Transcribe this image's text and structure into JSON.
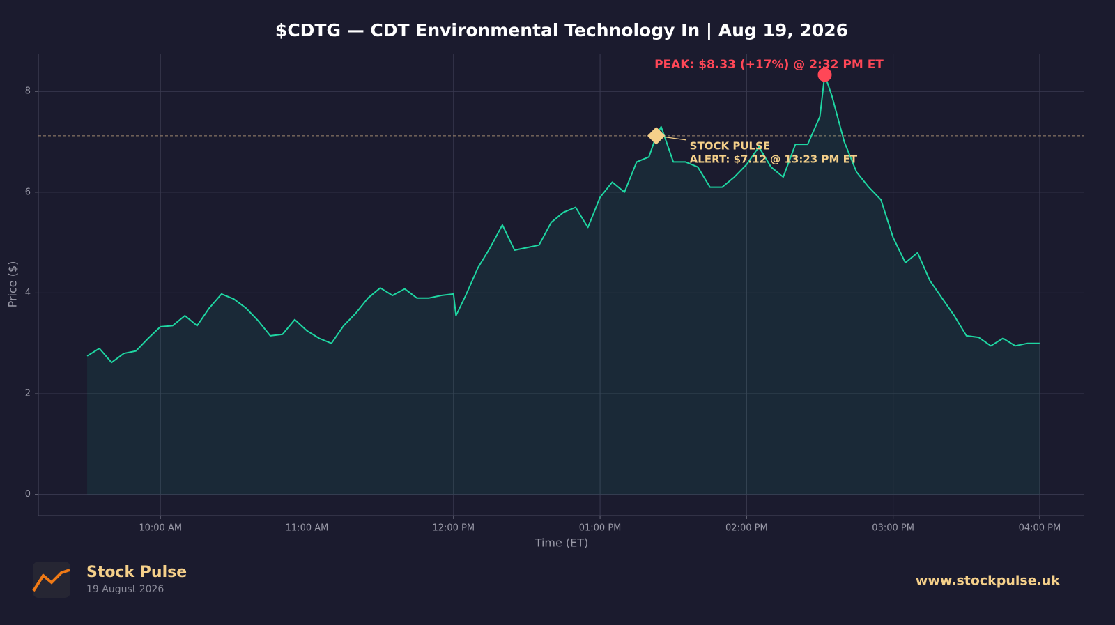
{
  "chart_data": {
    "type": "line",
    "title": "$CDTG — CDT Environmental Technology In  |  Aug 19, 2026",
    "x_label": "Time (ET)",
    "y_label": "Price ($)",
    "x": [
      "09:30",
      "09:35",
      "09:40",
      "09:45",
      "09:50",
      "09:55",
      "10:00",
      "10:05",
      "10:10",
      "10:15",
      "10:20",
      "10:25",
      "10:30",
      "10:35",
      "10:40",
      "10:45",
      "10:50",
      "10:55",
      "11:00",
      "11:05",
      "11:10",
      "11:15",
      "11:20",
      "11:25",
      "11:30",
      "11:35",
      "11:40",
      "11:45",
      "11:50",
      "11:55",
      "12:00",
      "12:01",
      "12:05",
      "12:10",
      "12:15",
      "12:20",
      "12:25",
      "12:30",
      "12:35",
      "12:40",
      "12:45",
      "12:50",
      "12:55",
      "13:00",
      "13:05",
      "13:10",
      "13:15",
      "13:20",
      "13:23",
      "13:25",
      "13:30",
      "13:35",
      "13:40",
      "13:45",
      "13:50",
      "13:55",
      "14:00",
      "14:05",
      "14:10",
      "14:15",
      "14:20",
      "14:25",
      "14:30",
      "14:32",
      "14:35",
      "14:40",
      "14:45",
      "14:50",
      "14:55",
      "15:00",
      "15:05",
      "15:10",
      "15:15",
      "15:20",
      "15:25",
      "15:30",
      "15:35",
      "15:40",
      "15:45",
      "15:50",
      "15:55",
      "16:00"
    ],
    "series": [
      {
        "name": "$CDTG",
        "color": "#1fd6a2",
        "values": [
          2.75,
          2.9,
          2.62,
          2.8,
          2.85,
          3.1,
          3.33,
          3.35,
          3.55,
          3.35,
          3.7,
          3.98,
          3.88,
          3.7,
          3.45,
          3.15,
          3.18,
          3.47,
          3.25,
          3.1,
          3.0,
          3.35,
          3.6,
          3.9,
          4.1,
          3.95,
          4.08,
          3.9,
          3.9,
          3.95,
          3.98,
          3.55,
          3.95,
          4.5,
          4.9,
          5.35,
          4.85,
          4.9,
          4.95,
          5.4,
          5.6,
          5.7,
          5.3,
          5.9,
          6.2,
          6.0,
          6.6,
          6.7,
          7.12,
          7.3,
          6.6,
          6.6,
          6.5,
          6.1,
          6.1,
          6.3,
          6.55,
          6.9,
          6.5,
          6.3,
          6.95,
          6.95,
          7.5,
          8.33,
          7.9,
          7.0,
          6.4,
          6.1,
          5.85,
          5.1,
          4.6,
          4.8,
          4.25,
          3.9,
          3.55,
          3.15,
          3.12,
          2.95,
          3.1,
          2.95,
          3.0,
          3.0
        ]
      }
    ],
    "xlim": [
      "09:10",
      "16:18"
    ],
    "xticks": [
      {
        "value": "10:00",
        "label": "10:00 AM"
      },
      {
        "value": "11:00",
        "label": "11:00 AM"
      },
      {
        "value": "12:00",
        "label": "12:00 PM"
      },
      {
        "value": "13:00",
        "label": "01:00 PM"
      },
      {
        "value": "14:00",
        "label": "02:00 PM"
      },
      {
        "value": "15:00",
        "label": "03:00 PM"
      },
      {
        "value": "16:00",
        "label": "04:00 PM"
      }
    ],
    "ylim": [
      -0.42,
      8.75
    ],
    "yticks": [
      0,
      2,
      4,
      6,
      8
    ],
    "grid": true,
    "peak": {
      "x": "14:32",
      "y": 8.33,
      "color": "#ff4757",
      "label": "PEAK: $8.33 (+17%) @ 2:32 PM ET"
    },
    "alert": {
      "x": "13:23",
      "y": 7.12,
      "color": "#f5d08a",
      "label": [
        "STOCK PULSE",
        "ALERT: $7.12 @ 13:23 PM ET"
      ]
    }
  },
  "footer": {
    "brand": "Stock Pulse",
    "date": "19 August 2026",
    "url": "www.stockpulse.uk"
  }
}
